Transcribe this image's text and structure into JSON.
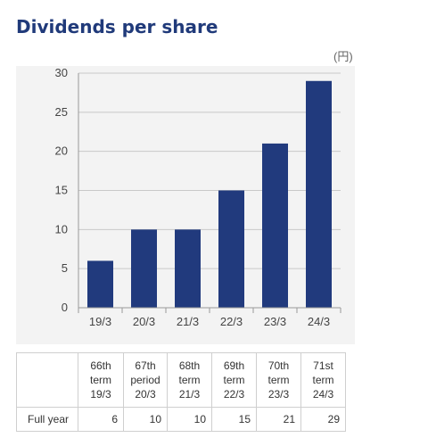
{
  "title": "Dividends per share",
  "chart_data": {
    "type": "bar",
    "unit": "(円)",
    "categories": [
      "19/3",
      "20/3",
      "21/3",
      "22/3",
      "23/3",
      "24/3"
    ],
    "values": [
      6,
      10,
      10,
      15,
      21,
      29
    ],
    "ylim": [
      0,
      30
    ],
    "yticks": [
      0,
      5,
      10,
      15,
      20,
      25,
      30
    ],
    "grid": true,
    "bar_color": "#213a7d"
  },
  "table": {
    "columns": [
      [
        "66th",
        "term",
        "19/3"
      ],
      [
        "67th",
        "period",
        "20/3"
      ],
      [
        "68th",
        "term",
        "21/3"
      ],
      [
        "69th",
        "term",
        "22/3"
      ],
      [
        "70th",
        "term",
        "23/3"
      ],
      [
        "71st",
        "term",
        "24/3"
      ]
    ],
    "row_label": "Full year",
    "values": [
      "6",
      "10",
      "10",
      "15",
      "21",
      "29"
    ]
  }
}
